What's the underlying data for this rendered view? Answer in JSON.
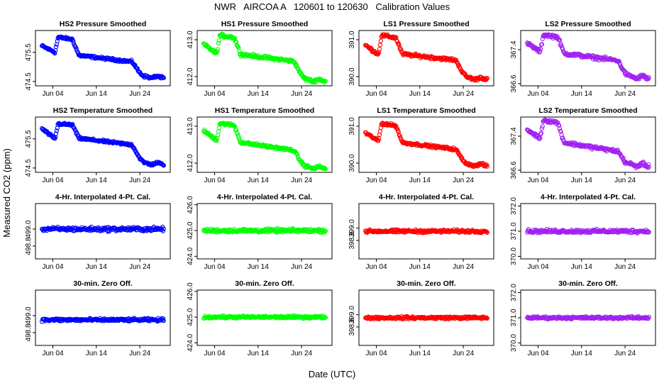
{
  "figure_title": "NWR   AIRCOA A   120601 to 120630   Calibration Values",
  "ylabel": "Measured CO2 (ppm)",
  "xlabel": "Date (UTC)",
  "x_ticks": [
    "Jun 04",
    "Jun 14",
    "Jun 24"
  ],
  "x_tick_days": [
    4,
    14,
    24
  ],
  "x_range_days": [
    0.0,
    31.0
  ],
  "data_day_range": [
    1.5,
    29.5
  ],
  "colors": {
    "HS2": "#0000ff",
    "HS1": "#00ff00",
    "LS1": "#ff0000",
    "LS2": "#a020f0"
  },
  "chart_data": [
    {
      "type": "scatter",
      "row": 0,
      "col": 0,
      "title": "HS2 Pressure Smoothed",
      "color_key": "HS2",
      "ylim": [
        474.35,
        476.25
      ],
      "yticks": [
        "474.5",
        "475.5"
      ],
      "ytick_values": [
        474.5,
        475.5
      ],
      "trend": {
        "start": 475.72,
        "dip": 475.5,
        "peak": 476.02,
        "plateau": 475.18,
        "end": 474.65,
        "noise": 0.06
      }
    },
    {
      "type": "scatter",
      "row": 0,
      "col": 1,
      "title": "HS1 Pressure Smoothed",
      "color_key": "HS1",
      "ylim": [
        411.75,
        413.25
      ],
      "yticks": [
        "412.0",
        "413.0"
      ],
      "ytick_values": [
        412.0,
        413.0
      ],
      "trend": {
        "start": 412.88,
        "dip": 412.62,
        "peak": 413.12,
        "plateau": 412.42,
        "end": 411.9,
        "noise": 0.06
      }
    },
    {
      "type": "scatter",
      "row": 0,
      "col": 2,
      "title": "LS1 Pressure Smoothed",
      "color_key": "LS1",
      "ylim": [
        389.75,
        391.25
      ],
      "yticks": [
        "390.0",
        "391.0"
      ],
      "ytick_values": [
        390.0,
        391.0
      ],
      "trend": {
        "start": 390.85,
        "dip": 390.6,
        "peak": 391.12,
        "plateau": 390.45,
        "end": 389.95,
        "noise": 0.06
      }
    },
    {
      "type": "scatter",
      "row": 0,
      "col": 3,
      "title": "LS2 Pressure Smoothed",
      "color_key": "LS2",
      "ylim": [
        366.55,
        367.85
      ],
      "yticks": [
        "366.6",
        "367.4"
      ],
      "ytick_values": [
        366.6,
        367.4
      ],
      "trend": {
        "start": 367.55,
        "dip": 367.35,
        "peak": 367.75,
        "plateau": 367.15,
        "end": 366.75,
        "noise": 0.06
      }
    },
    {
      "type": "scatter",
      "row": 1,
      "col": 0,
      "title": "HS2 Temperature Smoothed",
      "color_key": "HS2",
      "ylim": [
        474.35,
        476.25
      ],
      "yticks": [
        "474.5",
        "475.5"
      ],
      "ytick_values": [
        474.5,
        475.5
      ],
      "trend": {
        "start": 475.85,
        "dip": 475.5,
        "peak": 476.02,
        "plateau": 475.3,
        "end": 474.65,
        "noise": 0.06
      }
    },
    {
      "type": "scatter",
      "row": 1,
      "col": 1,
      "title": "HS1 Temperature Smoothed",
      "color_key": "HS1",
      "ylim": [
        411.75,
        413.25
      ],
      "yticks": [
        "412.0",
        "413.0"
      ],
      "ytick_values": [
        412.0,
        413.0
      ],
      "trend": {
        "start": 412.88,
        "dip": 412.62,
        "peak": 413.08,
        "plateau": 412.35,
        "end": 411.88,
        "noise": 0.05
      }
    },
    {
      "type": "scatter",
      "row": 1,
      "col": 2,
      "title": "LS1 Temperature Smoothed",
      "color_key": "LS1",
      "ylim": [
        389.75,
        391.25
      ],
      "yticks": [
        "390.0",
        "391.0"
      ],
      "ytick_values": [
        390.0,
        391.0
      ],
      "trend": {
        "start": 390.82,
        "dip": 390.6,
        "peak": 391.08,
        "plateau": 390.38,
        "end": 389.95,
        "noise": 0.05
      }
    },
    {
      "type": "scatter",
      "row": 1,
      "col": 3,
      "title": "LS2 Temperature Smoothed",
      "color_key": "LS2",
      "ylim": [
        366.55,
        367.85
      ],
      "yticks": [
        "366.6",
        "367.4"
      ],
      "ytick_values": [
        366.6,
        367.4
      ],
      "trend": {
        "start": 367.55,
        "dip": 367.35,
        "peak": 367.78,
        "plateau": 367.05,
        "end": 366.72,
        "noise": 0.06
      }
    },
    {
      "type": "scatter",
      "row": 2,
      "col": 0,
      "title": "4-Hr. Interpolated 4-Pt. Cal.",
      "color_key": "HS2",
      "ylim": [
        498.65,
        499.3
      ],
      "yticks": [
        "498.8",
        "499.0"
      ],
      "ytick_values": [
        498.8,
        499.0
      ],
      "flat": {
        "mean": 499.0,
        "noise": 0.035
      }
    },
    {
      "type": "scatter",
      "row": 2,
      "col": 1,
      "title": "4-Hr. Interpolated 4-Pt. Cal.",
      "color_key": "HS1",
      "ylim": [
        423.9,
        426.05
      ],
      "yticks": [
        "424.0",
        "425.0",
        "426.0"
      ],
      "ytick_values": [
        424.0,
        425.0,
        426.0
      ],
      "flat": {
        "mean": 425.0,
        "noise": 0.1
      }
    },
    {
      "type": "scatter",
      "row": 2,
      "col": 2,
      "title": "4-Hr. Interpolated 4-Pt. Cal.",
      "color_key": "LS1",
      "ylim": [
        398.5,
        399.4
      ],
      "yticks": [
        "398.8",
        "399.0"
      ],
      "ytick_values": [
        398.8,
        399.0
      ],
      "flat": {
        "mean": 398.95,
        "noise": 0.035
      }
    },
    {
      "type": "scatter",
      "row": 2,
      "col": 3,
      "title": "4-Hr. Interpolated 4-Pt. Cal.",
      "color_key": "LS2",
      "ylim": [
        369.9,
        372.1
      ],
      "yticks": [
        "370.0",
        "371.0",
        "372.0"
      ],
      "ytick_values": [
        370.0,
        371.0,
        372.0
      ],
      "flat": {
        "mean": 371.0,
        "noise": 0.1
      }
    },
    {
      "type": "scatter",
      "row": 3,
      "col": 0,
      "title": "30-min. Zero Off.",
      "color_key": "HS2",
      "ylim": [
        498.65,
        499.3
      ],
      "yticks": [
        "498.8",
        "499.0"
      ],
      "ytick_values": [
        498.8,
        499.0
      ],
      "flat": {
        "mean": 498.95,
        "noise": 0.025
      }
    },
    {
      "type": "scatter",
      "row": 3,
      "col": 1,
      "title": "30-min. Zero Off.",
      "color_key": "HS1",
      "ylim": [
        423.9,
        426.05
      ],
      "yticks": [
        "424.0",
        "425.0",
        "426.0"
      ],
      "ytick_values": [
        424.0,
        425.0,
        426.0
      ],
      "flat": {
        "mean": 425.0,
        "noise": 0.07
      }
    },
    {
      "type": "scatter",
      "row": 3,
      "col": 2,
      "title": "30-min. Zero Off.",
      "color_key": "LS1",
      "ylim": [
        398.5,
        399.4
      ],
      "yticks": [
        "398.8",
        "399.0"
      ],
      "ytick_values": [
        398.8,
        399.0
      ],
      "flat": {
        "mean": 398.95,
        "noise": 0.03
      }
    },
    {
      "type": "scatter",
      "row": 3,
      "col": 3,
      "title": "30-min. Zero Off.",
      "color_key": "LS2",
      "ylim": [
        369.9,
        372.1
      ],
      "yticks": [
        "370.0",
        "371.0",
        "372.0"
      ],
      "ytick_values": [
        370.0,
        371.0,
        372.0
      ],
      "flat": {
        "mean": 371.0,
        "noise": 0.07
      }
    }
  ]
}
